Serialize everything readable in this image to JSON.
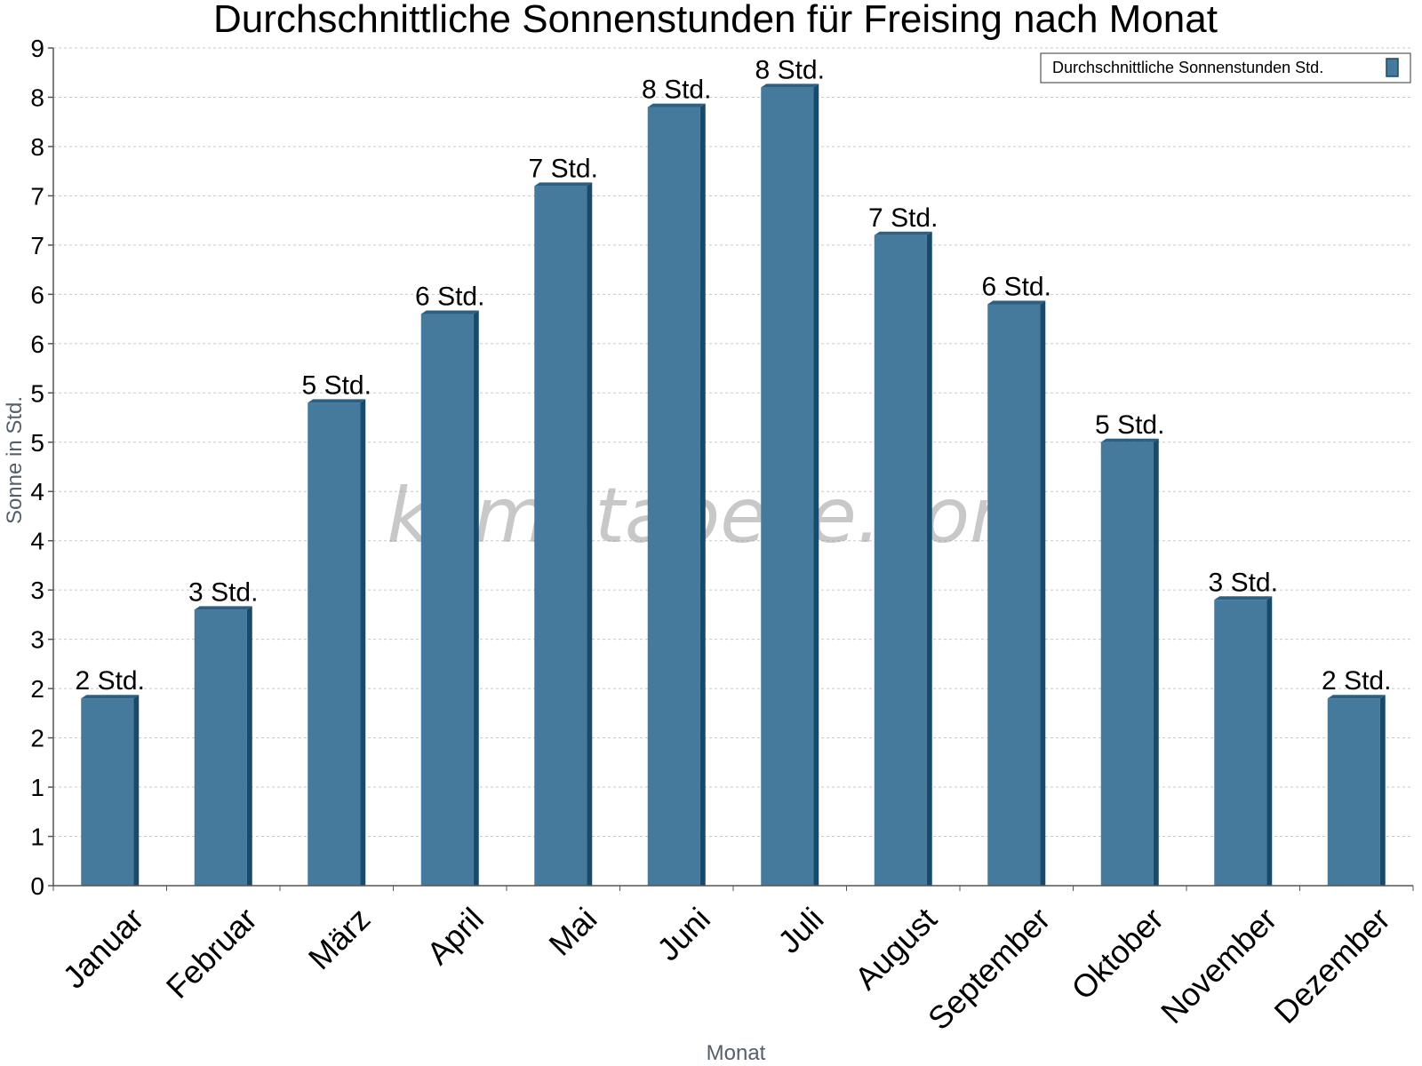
{
  "chart_data": {
    "type": "bar",
    "title": "Durchschnittliche Sonnenstunden für Freising nach Monat",
    "xlabel": "Monat",
    "ylabel": "Sonne in Std.",
    "ylim": [
      0,
      8.5
    ],
    "yticks": [
      {
        "value": 0.0,
        "label": "0"
      },
      {
        "value": 0.5,
        "label": "1"
      },
      {
        "value": 1.0,
        "label": "1"
      },
      {
        "value": 1.5,
        "label": "2"
      },
      {
        "value": 2.0,
        "label": "2"
      },
      {
        "value": 2.5,
        "label": "3"
      },
      {
        "value": 3.0,
        "label": "3"
      },
      {
        "value": 3.5,
        "label": "4"
      },
      {
        "value": 4.0,
        "label": "4"
      },
      {
        "value": 4.5,
        "label": "5"
      },
      {
        "value": 5.0,
        "label": "5"
      },
      {
        "value": 5.5,
        "label": "6"
      },
      {
        "value": 6.0,
        "label": "6"
      },
      {
        "value": 6.5,
        "label": "7"
      },
      {
        "value": 7.0,
        "label": "7"
      },
      {
        "value": 7.5,
        "label": "8"
      },
      {
        "value": 8.0,
        "label": "8"
      },
      {
        "value": 8.5,
        "label": "9"
      }
    ],
    "categories": [
      "Januar",
      "Februar",
      "März",
      "April",
      "Mai",
      "Juni",
      "Juli",
      "August",
      "September",
      "Oktober",
      "November",
      "Dezember"
    ],
    "series": [
      {
        "name": "Durchschnittliche Sonnenstunden Std.",
        "values": [
          1.9,
          2.8,
          4.9,
          5.8,
          7.1,
          7.9,
          8.1,
          6.6,
          5.9,
          4.5,
          2.9,
          1.9
        ],
        "data_labels": [
          "2 Std.",
          "3 Std.",
          "5 Std.",
          "6 Std.",
          "7 Std.",
          "8 Std.",
          "8 Std.",
          "7 Std.",
          "6 Std.",
          "5 Std.",
          "3 Std.",
          "2 Std."
        ]
      }
    ],
    "grid": true,
    "legend_position": "top-right",
    "colors": {
      "bar": "#467a9c",
      "bar_side": "#174a6b",
      "bar_top": "#2a6084"
    },
    "watermark": "klimatabelle.com"
  }
}
